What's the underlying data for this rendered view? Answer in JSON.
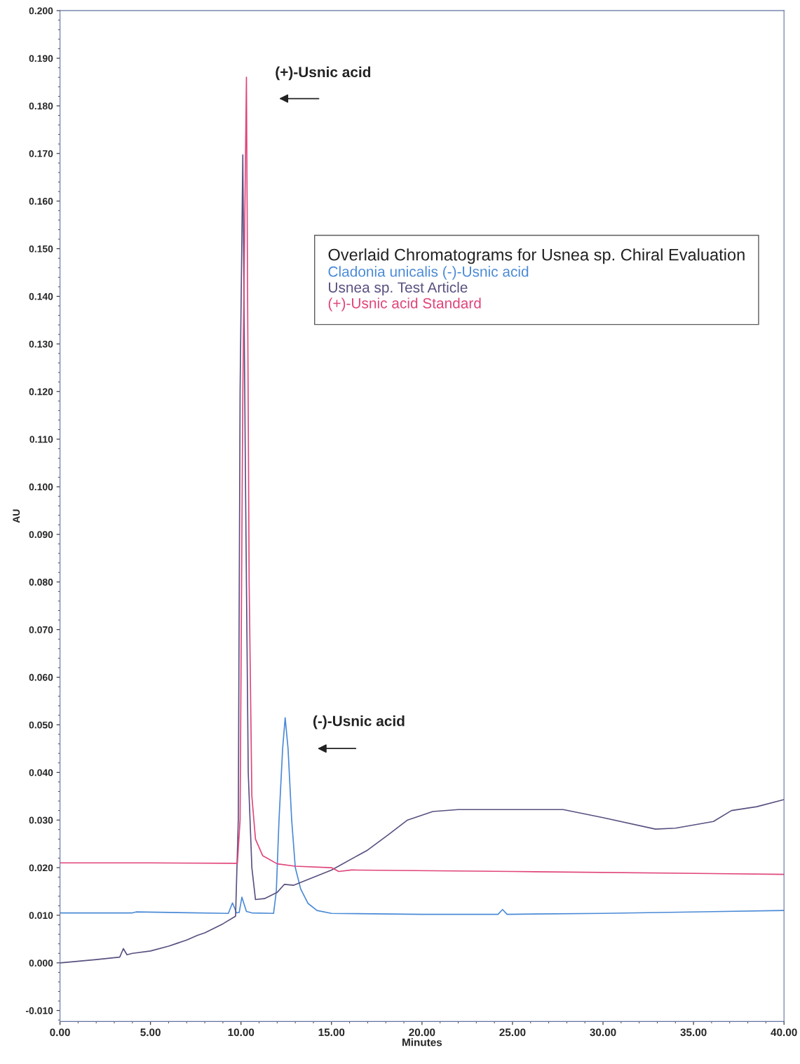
{
  "chart_data": {
    "type": "line",
    "legend_title": "Overlaid Chromatograms for Usnea sp. Chiral Evaluation",
    "xlabel": "Minutes",
    "ylabel": "AU",
    "xlim": [
      0,
      40
    ],
    "ylim": [
      -0.0123,
      0.2
    ],
    "xticks": [
      {
        "value": 0,
        "label": "0.00"
      },
      {
        "value": 5,
        "label": "5.00"
      },
      {
        "value": 10,
        "label": "10.00"
      },
      {
        "value": 15,
        "label": "15.00"
      },
      {
        "value": 20,
        "label": "20.00"
      },
      {
        "value": 25,
        "label": "25.00"
      },
      {
        "value": 30,
        "label": "30.00"
      },
      {
        "value": 35,
        "label": "35.00"
      },
      {
        "value": 40,
        "label": "40.00"
      }
    ],
    "yticks": [
      {
        "value": -0.01,
        "label": "-0.010"
      },
      {
        "value": 0,
        "label": "0.000"
      },
      {
        "value": 0.01,
        "label": "0.010"
      },
      {
        "value": 0.02,
        "label": "0.020"
      },
      {
        "value": 0.03,
        "label": "0.030"
      },
      {
        "value": 0.04,
        "label": "0.040"
      },
      {
        "value": 0.05,
        "label": "0.050"
      },
      {
        "value": 0.06,
        "label": "0.060"
      },
      {
        "value": 0.07,
        "label": "0.070"
      },
      {
        "value": 0.08,
        "label": "0.080"
      },
      {
        "value": 0.09,
        "label": "0.090"
      },
      {
        "value": 0.1,
        "label": "0.100"
      },
      {
        "value": 0.11,
        "label": "0.110"
      },
      {
        "value": 0.12,
        "label": "0.120"
      },
      {
        "value": 0.13,
        "label": "0.130"
      },
      {
        "value": 0.14,
        "label": "0.140"
      },
      {
        "value": 0.15,
        "label": "0.150"
      },
      {
        "value": 0.16,
        "label": "0.160"
      },
      {
        "value": 0.17,
        "label": "0.170"
      },
      {
        "value": 0.18,
        "label": "0.180"
      },
      {
        "value": 0.19,
        "label": "0.190"
      },
      {
        "value": 0.2,
        "label": "0.200"
      }
    ],
    "grid": false,
    "legend": "top right",
    "marker": "none",
    "line_style": "solid",
    "series": [
      {
        "name": "Cladonia unicalis (-)-Usnic acid",
        "color": "#4a8ad6",
        "x": [
          0,
          4,
          4.2,
          9.3,
          9.53,
          9.75,
          9.9,
          10.05,
          10.3,
          10.6,
          11.8,
          11.95,
          12.1,
          12.3,
          12.44,
          12.6,
          12.8,
          13.0,
          13.3,
          13.7,
          14.2,
          15,
          20,
          24.2,
          24.45,
          24.7,
          30,
          40
        ],
        "values": [
          0.0105,
          0.0105,
          0.0107,
          0.0104,
          0.0126,
          0.0105,
          0.0106,
          0.0138,
          0.0108,
          0.0105,
          0.0104,
          0.015,
          0.03,
          0.045,
          0.0515,
          0.045,
          0.03,
          0.02,
          0.0155,
          0.0125,
          0.011,
          0.0104,
          0.0102,
          0.0102,
          0.0112,
          0.0102,
          0.0104,
          0.011
        ]
      },
      {
        "name": "Usnea sp. Test Article",
        "color": "#5a5080",
        "x": [
          0,
          2,
          3.3,
          3.5,
          3.7,
          4,
          5,
          6,
          7,
          7.6,
          8,
          9,
          9.7,
          9.85,
          9.95,
          10.1,
          10.25,
          10.4,
          10.6,
          10.8,
          11.3,
          12,
          12.4,
          12.9,
          13.5,
          15,
          17,
          18.1,
          19.2,
          20.6,
          22,
          25,
          27.8,
          30,
          32.9,
          34,
          36.1,
          37.1,
          38.5,
          40
        ],
        "values": [
          0,
          0.0007,
          0.0012,
          0.003,
          0.0017,
          0.002,
          0.0025,
          0.0035,
          0.0048,
          0.0058,
          0.0063,
          0.0082,
          0.0098,
          0.03,
          0.12,
          0.1697,
          0.1,
          0.04,
          0.02,
          0.0133,
          0.0135,
          0.0148,
          0.0165,
          0.0163,
          0.0172,
          0.0195,
          0.0237,
          0.0268,
          0.03,
          0.0318,
          0.0322,
          0.0322,
          0.0322,
          0.0305,
          0.0281,
          0.0283,
          0.0297,
          0.032,
          0.0328,
          0.0343
        ]
      },
      {
        "name": "(+)-Usnic acid Standard",
        "color": "#e0457b",
        "x": [
          0,
          5,
          9.8,
          9.95,
          10.1,
          10.3,
          10.45,
          10.6,
          10.8,
          11.2,
          12,
          13,
          15,
          15.4,
          16.1,
          25,
          40
        ],
        "values": [
          0.021,
          0.021,
          0.0209,
          0.03,
          0.12,
          0.186,
          0.08,
          0.035,
          0.026,
          0.0225,
          0.0208,
          0.0203,
          0.02,
          0.0192,
          0.0195,
          0.0192,
          0.0186
        ]
      }
    ],
    "annotations": [
      "(+)-Usnic acid",
      "(-)-Usnic acid"
    ]
  }
}
